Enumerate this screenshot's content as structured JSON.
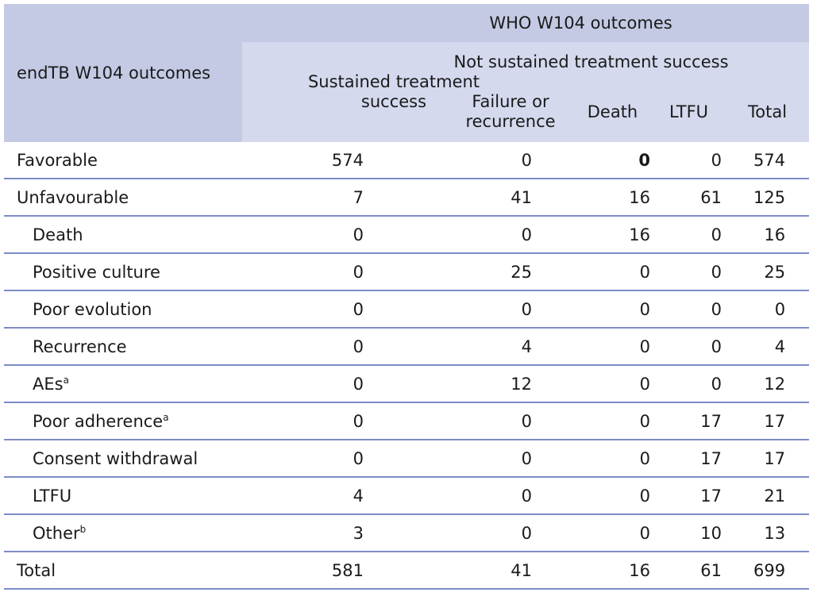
{
  "header": {
    "stub": "endTB W104 outcomes",
    "top": "WHO W104 outcomes",
    "sustained": "Sustained treatment success",
    "not_sustained": "Not sustained treatment success",
    "failure": "Failure or recurrence",
    "death": "Death",
    "ltfu": "LTFU",
    "total": "Total"
  },
  "rows": [
    {
      "label": "Favorable",
      "sup": "",
      "values": [
        "574",
        "0",
        "0",
        "0",
        "574"
      ]
    },
    {
      "label": "Unfavourable",
      "sup": "",
      "values": [
        "7",
        "41",
        "16",
        "61",
        "125"
      ]
    },
    {
      "label": "Death",
      "sup": "",
      "values": [
        "0",
        "0",
        "16",
        "0",
        "16"
      ]
    },
    {
      "label": "Positive culture",
      "sup": "",
      "values": [
        "0",
        "25",
        "0",
        "0",
        "25"
      ]
    },
    {
      "label": "Poor evolution",
      "sup": "",
      "values": [
        "0",
        "0",
        "0",
        "0",
        "0"
      ]
    },
    {
      "label": "Recurrence",
      "sup": "",
      "values": [
        "0",
        "4",
        "0",
        "0",
        "4"
      ]
    },
    {
      "label": "AEs",
      "sup": "a",
      "values": [
        "0",
        "12",
        "0",
        "0",
        "12"
      ]
    },
    {
      "label": "Poor adherence",
      "sup": "a",
      "values": [
        "0",
        "0",
        "0",
        "17",
        "17"
      ]
    },
    {
      "label": "Consent withdrawal",
      "sup": "",
      "values": [
        "0",
        "0",
        "0",
        "17",
        "17"
      ]
    },
    {
      "label": "LTFU",
      "sup": "",
      "values": [
        "4",
        "0",
        "0",
        "17",
        "21"
      ]
    },
    {
      "label": "Other",
      "sup": "b",
      "values": [
        "3",
        "0",
        "0",
        "10",
        "13"
      ]
    },
    {
      "label": "Total",
      "sup": "",
      "values": [
        "581",
        "41",
        "16",
        "61",
        "699"
      ]
    }
  ]
}
